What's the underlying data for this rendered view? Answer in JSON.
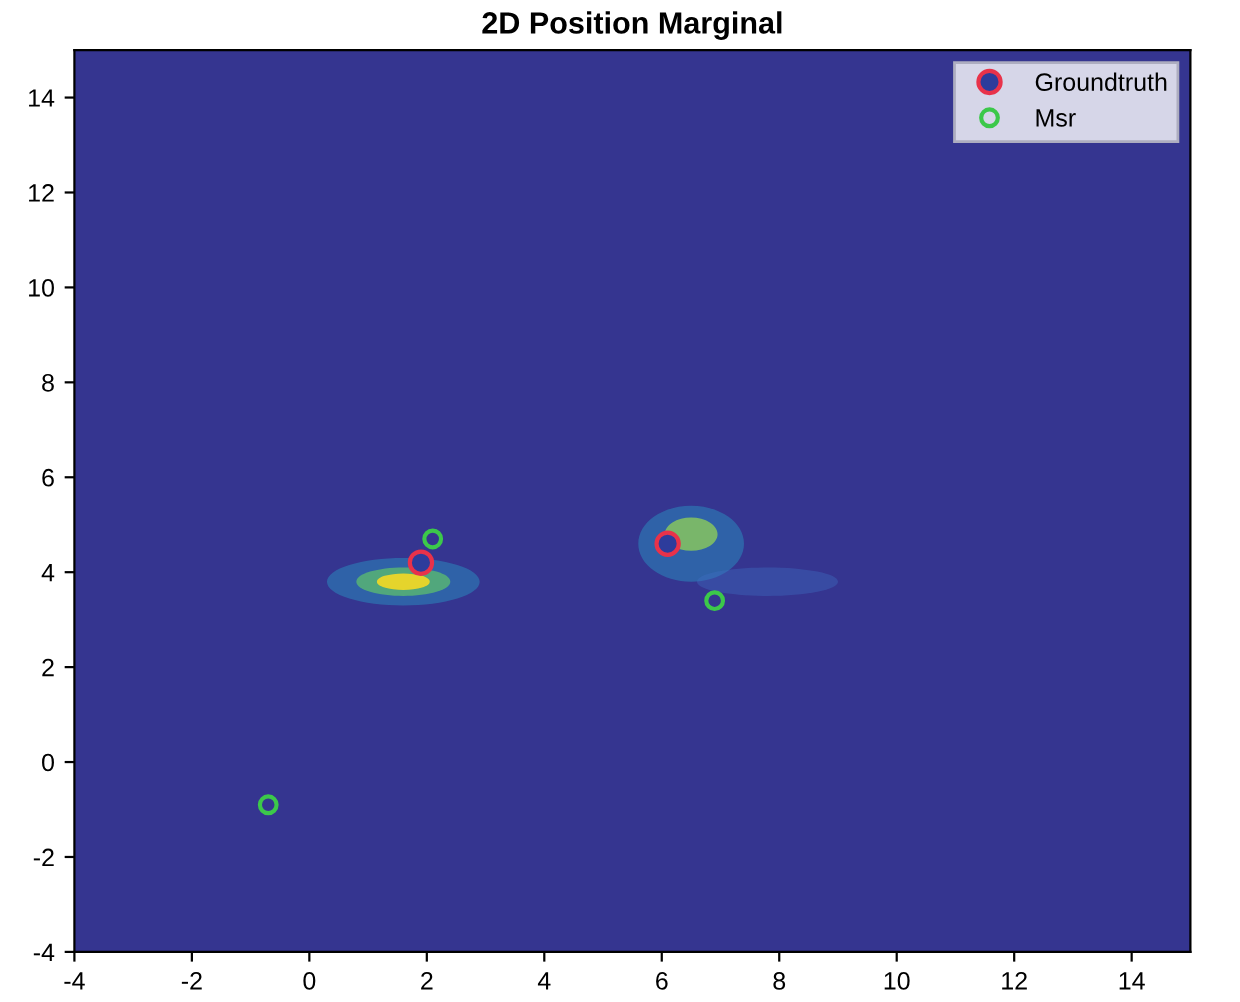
{
  "chart_data": {
    "type": "scatter",
    "title": "2D Position Marginal",
    "series": [
      {
        "name": "Groundtruth",
        "color": "#e8324a",
        "x": [
          1.9,
          6.1
        ],
        "values": [
          4.2,
          4.6
        ]
      },
      {
        "name": "Msr",
        "color": "#3cc84a",
        "x": [
          2.1,
          6.9,
          -0.7
        ],
        "values": [
          4.7,
          3.4,
          -0.9
        ]
      }
    ],
    "xlim": [
      -4,
      15
    ],
    "ylim": [
      -4,
      15
    ],
    "xticks": [
      -4,
      -2,
      0,
      2,
      4,
      6,
      8,
      10,
      12,
      14
    ],
    "yticks": [
      -4,
      -2,
      0,
      2,
      4,
      6,
      8,
      10,
      12,
      14
    ],
    "grid": false,
    "legend": "top right",
    "marker": "circle"
  }
}
